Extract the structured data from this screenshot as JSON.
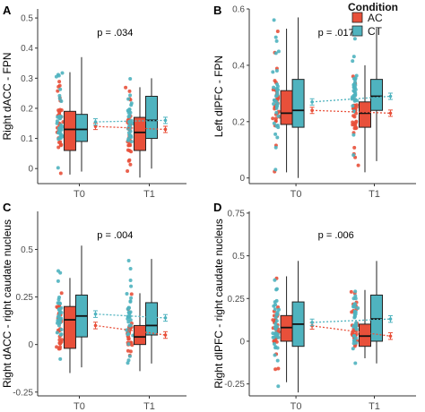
{
  "legend": {
    "title": "Condition",
    "items": [
      {
        "label": "AC",
        "color": "#e8503a"
      },
      {
        "label": "CT",
        "color": "#4fb3bf"
      }
    ]
  },
  "chart_data": [
    {
      "type": "box",
      "panel_letter": "A",
      "ylabel": "Right dACC - FPN",
      "p_label": "p = .034",
      "categories": [
        "T0",
        "T1"
      ],
      "yticks": [
        0.0,
        0.1,
        0.2,
        0.3,
        0.4,
        0.5
      ],
      "ylim": [
        -0.05,
        0.53
      ],
      "series": [
        {
          "name": "AC",
          "boxes": [
            {
              "whisker_low": -0.02,
              "q1": 0.06,
              "median": 0.13,
              "q3": 0.19,
              "whisker_high": 0.32
            },
            {
              "whisker_low": -0.03,
              "q1": 0.06,
              "median": 0.12,
              "q3": 0.17,
              "whisker_high": 0.27
            }
          ],
          "means": [
            0.14,
            0.13
          ]
        },
        {
          "name": "CT",
          "boxes": [
            {
              "whisker_low": -0.01,
              "q1": 0.09,
              "median": 0.13,
              "q3": 0.18,
              "whisker_high": 0.37
            },
            {
              "whisker_low": 0.0,
              "q1": 0.1,
              "median": 0.16,
              "q3": 0.24,
              "whisker_high": 0.3
            }
          ],
          "means": [
            0.155,
            0.16
          ]
        }
      ]
    },
    {
      "type": "box",
      "panel_letter": "B",
      "ylabel": "Left dlPFC - FPN",
      "p_label": "p = .017",
      "categories": [
        "T0",
        "T1"
      ],
      "yticks": [
        0.0,
        0.2,
        0.4,
        0.6
      ],
      "ylim": [
        -0.02,
        0.6
      ],
      "series": [
        {
          "name": "AC",
          "boxes": [
            {
              "whisker_low": 0.02,
              "q1": 0.19,
              "median": 0.23,
              "q3": 0.31,
              "whisker_high": 0.53
            },
            {
              "whisker_low": 0.02,
              "q1": 0.18,
              "median": 0.23,
              "q3": 0.27,
              "whisker_high": 0.4
            }
          ],
          "means": [
            0.24,
            0.23
          ]
        },
        {
          "name": "CT",
          "boxes": [
            {
              "whisker_low": 0.0,
              "q1": 0.18,
              "median": 0.24,
              "q3": 0.35,
              "whisker_high": 0.57
            },
            {
              "whisker_low": 0.06,
              "q1": 0.24,
              "median": 0.29,
              "q3": 0.35,
              "whisker_high": 0.53
            }
          ],
          "means": [
            0.27,
            0.29
          ]
        }
      ]
    },
    {
      "type": "box",
      "panel_letter": "C",
      "ylabel": "Right dACC - right caudate nucleus",
      "p_label": "p = .004",
      "categories": [
        "T0",
        "T1"
      ],
      "yticks": [
        -0.25,
        0.0,
        0.25,
        0.5
      ],
      "ylim": [
        -0.27,
        0.7
      ],
      "series": [
        {
          "name": "AC",
          "boxes": [
            {
              "whisker_low": -0.15,
              "q1": -0.02,
              "median": 0.13,
              "q3": 0.2,
              "whisker_high": 0.35
            },
            {
              "whisker_low": -0.14,
              "q1": 0.0,
              "median": 0.04,
              "q3": 0.1,
              "whisker_high": 0.27
            }
          ],
          "means": [
            0.1,
            0.05
          ]
        },
        {
          "name": "CT",
          "boxes": [
            {
              "whisker_low": -0.12,
              "q1": 0.04,
              "median": 0.15,
              "q3": 0.26,
              "whisker_high": 0.52
            },
            {
              "whisker_low": -0.1,
              "q1": 0.05,
              "median": 0.1,
              "q3": 0.22,
              "whisker_high": 0.45
            }
          ],
          "means": [
            0.16,
            0.14
          ]
        }
      ]
    },
    {
      "type": "box",
      "panel_letter": "D",
      "ylabel": "Right dlPFC - right caudate nucleus",
      "p_label": "p = .006",
      "categories": [
        "T0",
        "T1"
      ],
      "yticks": [
        -0.25,
        0.0,
        0.25,
        0.5,
        0.75
      ],
      "ylim": [
        -0.32,
        0.76
      ],
      "series": [
        {
          "name": "AC",
          "boxes": [
            {
              "whisker_low": -0.24,
              "q1": 0.0,
              "median": 0.08,
              "q3": 0.15,
              "whisker_high": 0.38
            },
            {
              "whisker_low": -0.1,
              "q1": -0.03,
              "median": 0.03,
              "q3": 0.1,
              "whisker_high": 0.3
            }
          ],
          "means": [
            0.09,
            0.03
          ]
        },
        {
          "name": "CT",
          "boxes": [
            {
              "whisker_low": -0.3,
              "q1": -0.03,
              "median": 0.1,
              "q3": 0.23,
              "whisker_high": 0.47
            },
            {
              "whisker_low": -0.13,
              "q1": 0.0,
              "median": 0.13,
              "q3": 0.27,
              "whisker_high": 0.47
            }
          ],
          "means": [
            0.11,
            0.13
          ]
        }
      ]
    }
  ]
}
